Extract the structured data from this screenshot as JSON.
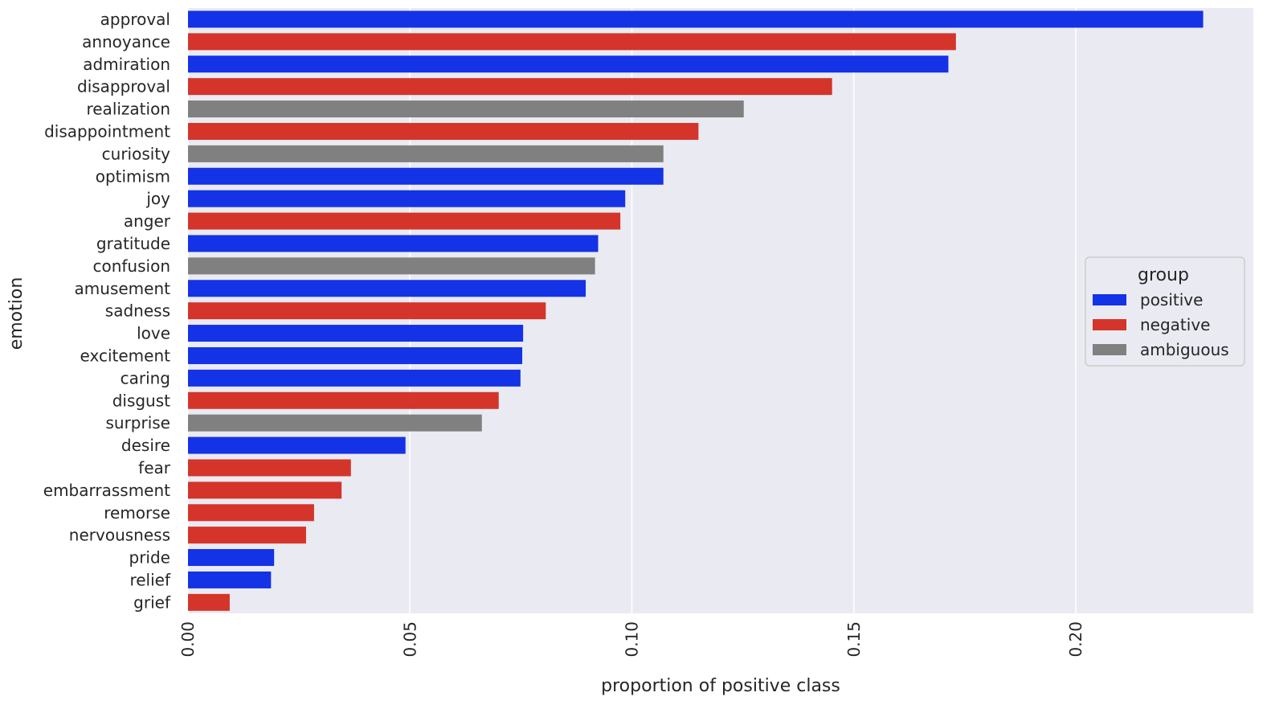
{
  "chart_data": {
    "type": "bar",
    "orientation": "horizontal",
    "title": "",
    "xlabel": "proportion of positive class",
    "ylabel": "emotion",
    "xlim": [
      0,
      0.24
    ],
    "xticks": [
      0.0,
      0.05,
      0.1,
      0.15,
      0.2
    ],
    "xtick_labels": [
      "0.00",
      "0.05",
      "0.10",
      "0.15",
      "0.20"
    ],
    "grid": true,
    "legend": {
      "title": "group",
      "placement": "center-right",
      "entries": [
        {
          "name": "positive",
          "color": "#1432e6"
        },
        {
          "name": "negative",
          "color": "#d4342a"
        },
        {
          "name": "ambiguous",
          "color": "#808080"
        }
      ]
    },
    "categories": [
      "approval",
      "annoyance",
      "admiration",
      "disapproval",
      "realization",
      "disappointment",
      "curiosity",
      "optimism",
      "joy",
      "anger",
      "gratitude",
      "confusion",
      "amusement",
      "sadness",
      "love",
      "excitement",
      "caring",
      "disgust",
      "surprise",
      "desire",
      "fear",
      "embarrassment",
      "remorse",
      "nervousness",
      "pride",
      "relief",
      "grief"
    ],
    "values": [
      0.2287,
      0.173,
      0.1713,
      0.1451,
      0.1252,
      0.115,
      0.1071,
      0.1071,
      0.0985,
      0.0974,
      0.0924,
      0.0917,
      0.0896,
      0.0806,
      0.0755,
      0.0753,
      0.0749,
      0.07,
      0.0662,
      0.049,
      0.0367,
      0.0346,
      0.0284,
      0.0266,
      0.0194,
      0.0187,
      0.0094
    ],
    "groups": [
      "positive",
      "negative",
      "positive",
      "negative",
      "ambiguous",
      "negative",
      "ambiguous",
      "positive",
      "positive",
      "negative",
      "positive",
      "ambiguous",
      "positive",
      "negative",
      "positive",
      "positive",
      "positive",
      "negative",
      "ambiguous",
      "positive",
      "negative",
      "negative",
      "negative",
      "negative",
      "positive",
      "positive",
      "negative"
    ]
  }
}
